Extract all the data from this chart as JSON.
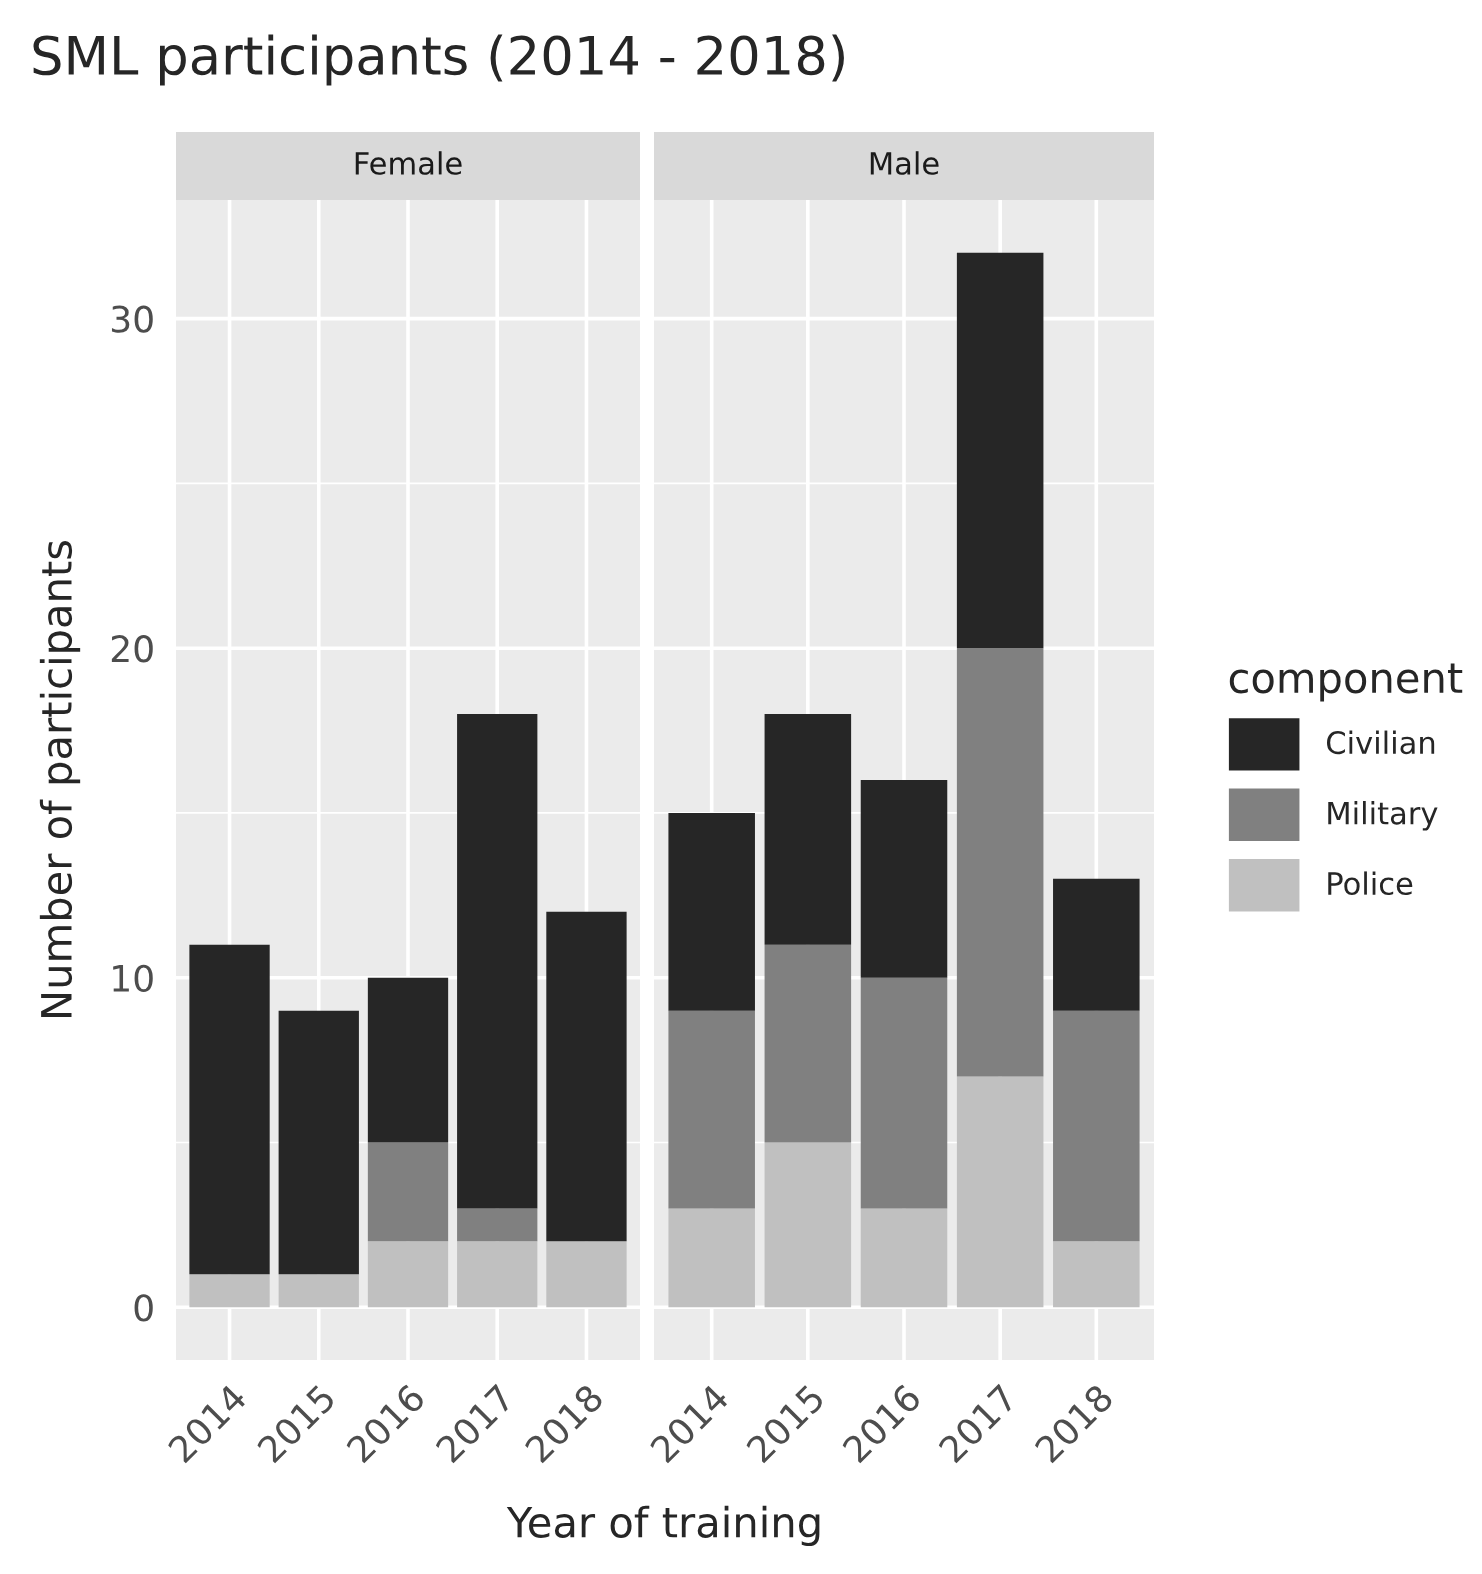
{
  "chart_data": [
    {
      "type": "bar",
      "title": "SML participants (2014 - 2018)",
      "subtitle": "Female",
      "xlabel": "Year of training",
      "ylabel": "Number of participants",
      "categories": [
        "2014",
        "2015",
        "2016",
        "2017",
        "2018"
      ],
      "stacked": true,
      "ylim": [
        -1.6,
        33.6
      ],
      "yticks": [
        0,
        10,
        20,
        30
      ],
      "grid": true,
      "series": [
        {
          "color": "#c0c0c0",
          "values": [
            1,
            1,
            2,
            2,
            2
          ]
        },
        {
          "color": "#808080",
          "values": [
            0,
            0,
            3,
            1,
            0
          ]
        },
        {
          "color": "#262626",
          "values": [
            10,
            8,
            5,
            15,
            10
          ]
        }
      ]
    },
    {
      "type": "bar",
      "subtitle": "Male",
      "legend_title": "component",
      "categories": [
        "2014",
        "2015",
        "2016",
        "2017",
        "2018"
      ],
      "stacked": true,
      "ylim": [
        -1.6,
        33.6
      ],
      "yticks": [
        0,
        10,
        20,
        30
      ],
      "grid": true,
      "legend": "right",
      "tick_labels": "x",
      "series": [
        {
          "name": "Police",
          "color": "#c0c0c0",
          "values": [
            3,
            5,
            3,
            7,
            2
          ]
        },
        {
          "name": "Military",
          "color": "#808080",
          "values": [
            6,
            6,
            7,
            13,
            7
          ]
        },
        {
          "name": "Civilian",
          "color": "#262626",
          "values": [
            6,
            7,
            6,
            12,
            4
          ]
        }
      ]
    }
  ]
}
